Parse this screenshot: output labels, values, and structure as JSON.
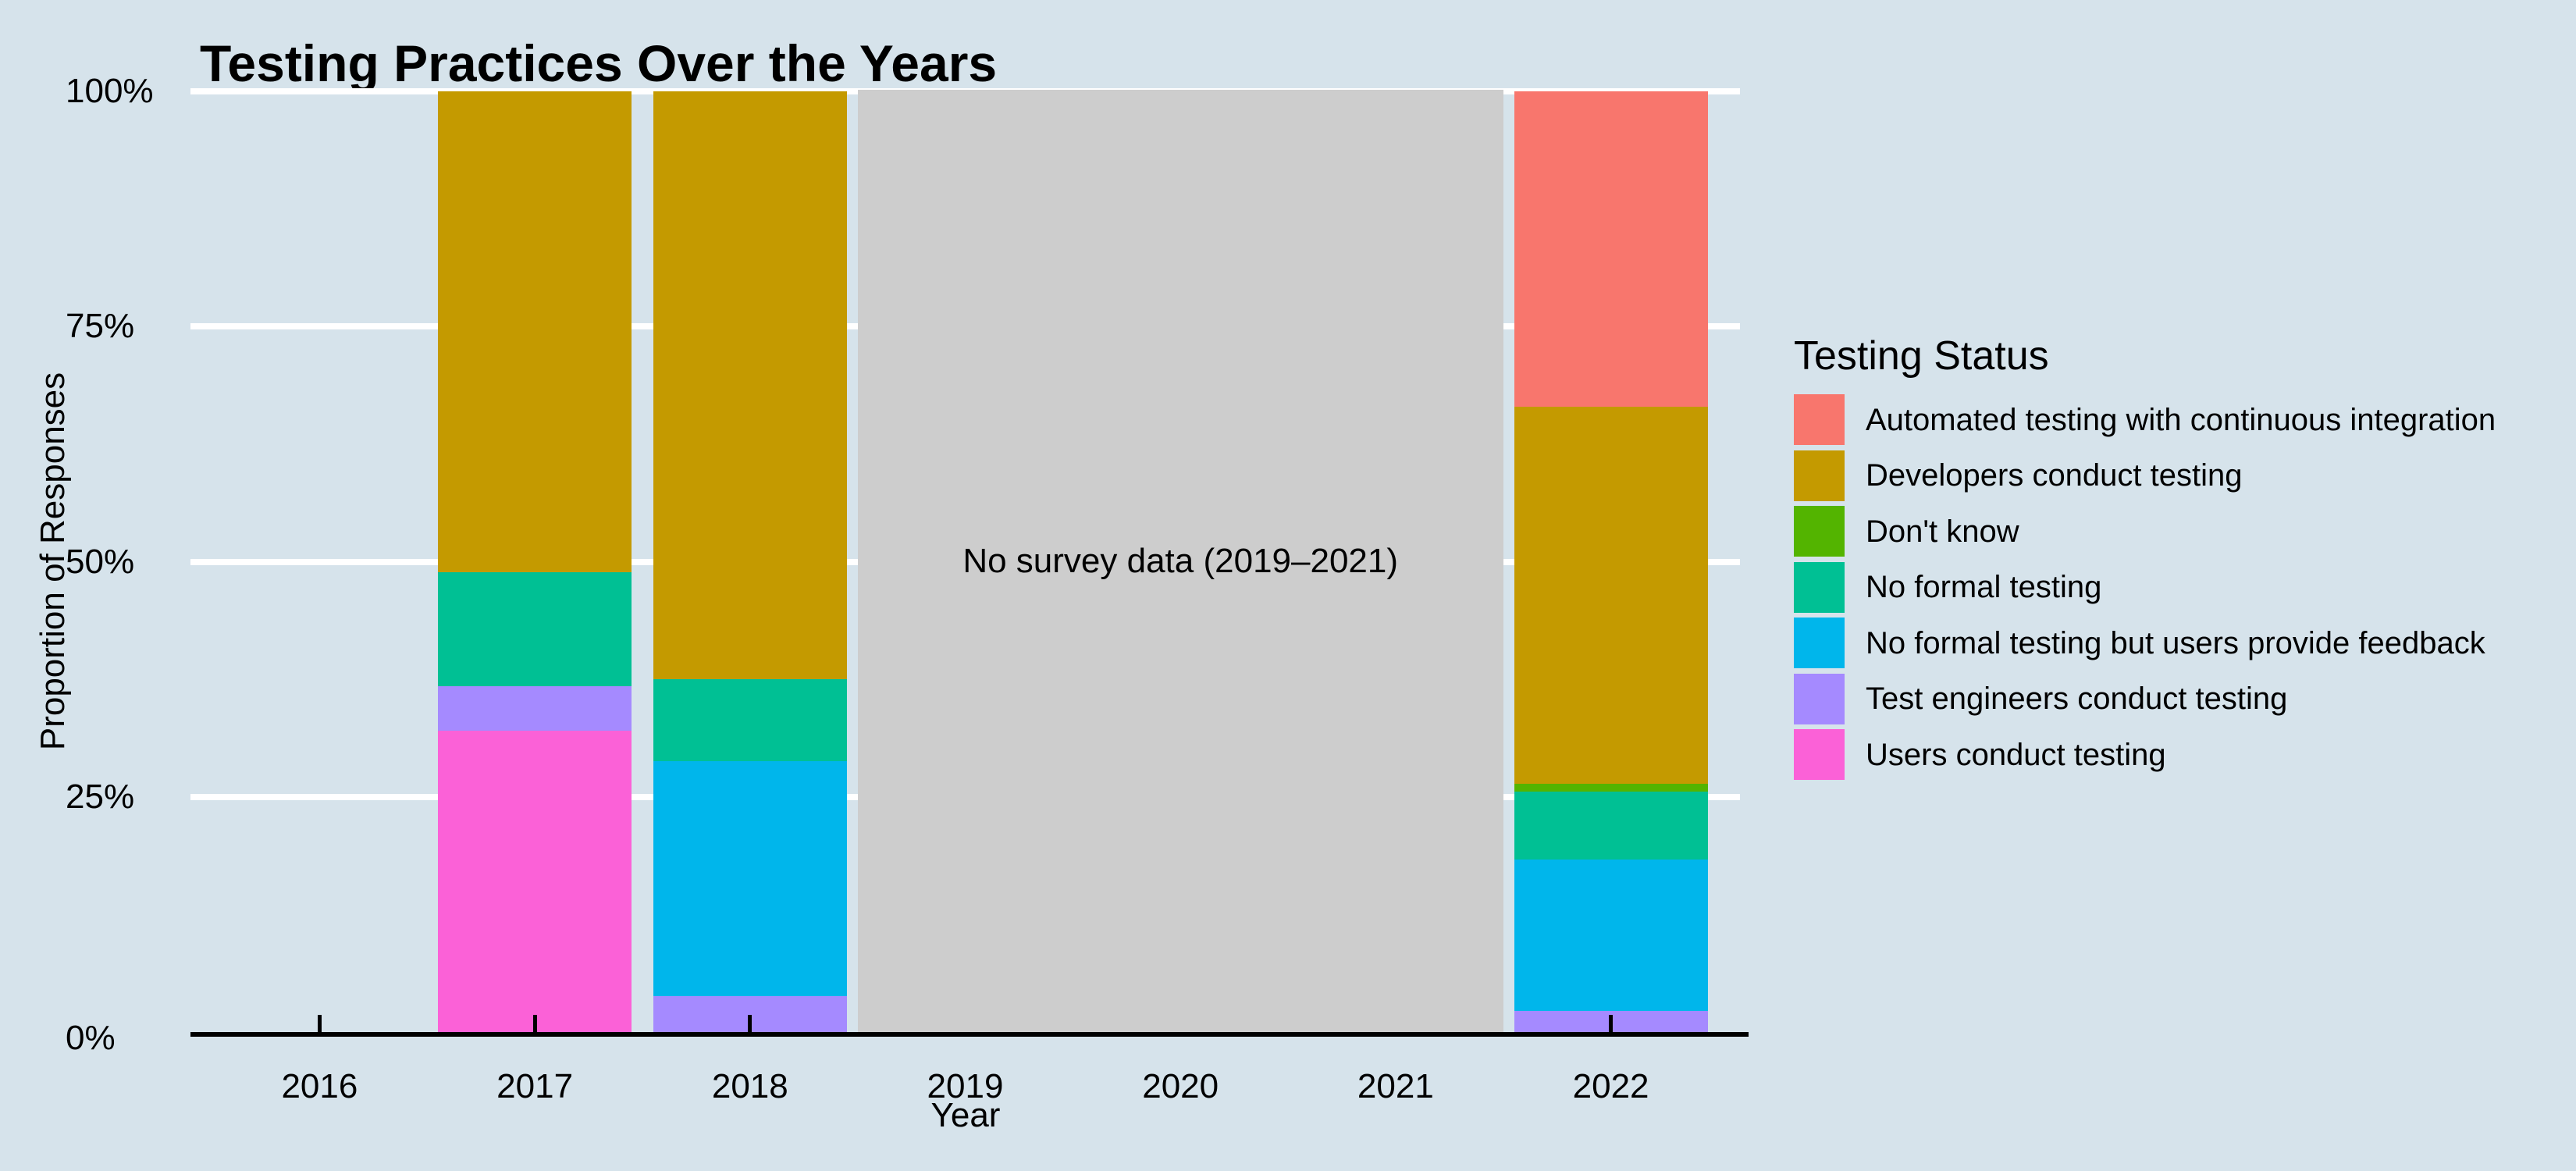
{
  "title": "Testing Practices Over the Years",
  "colors": {
    "background": "#d6e3eb",
    "gridline": "#ffffff",
    "axis_line": "#000000",
    "tick": "#000000",
    "text": "#000000",
    "no_data_box": "#cdcdcd"
  },
  "y_axis": {
    "title": "Proportion of Responses",
    "ticks": [
      {
        "value": 0,
        "label": "0%"
      },
      {
        "value": 25,
        "label": "25%"
      },
      {
        "value": 50,
        "label": "50%"
      },
      {
        "value": 75,
        "label": "75%"
      },
      {
        "value": 100,
        "label": "100%"
      }
    ]
  },
  "x_axis": {
    "title": "Year",
    "categories": [
      "2016",
      "2017",
      "2018",
      "2019",
      "2020",
      "2021",
      "2022"
    ]
  },
  "legend": {
    "title": "Testing Status"
  },
  "annotation": {
    "text": "No survey data (2019–2021)"
  },
  "chart_data": {
    "type": "bar",
    "subtype": "stacked-percent",
    "title": "Testing Practices Over the Years",
    "xlabel": "Year",
    "ylabel": "Proportion of Responses",
    "x": [
      "2016",
      "2017",
      "2018",
      "2019",
      "2020",
      "2021",
      "2022"
    ],
    "ylim": [
      0,
      100
    ],
    "y_tick_labels": [
      "0%",
      "25%",
      "50%",
      "75%",
      "100%"
    ],
    "grid": "horizontal white major gridlines",
    "legend_title": "Testing Status",
    "legend_position": "right",
    "stack_order": "legend order top-to-bottom (reverse alphabetical from bottom)",
    "no_data_years": [
      "2019",
      "2020",
      "2021"
    ],
    "no_data_label": "No survey data (2019–2021)",
    "series": [
      {
        "name": "Automated testing with continuous integration",
        "color": "#F8766D",
        "values": [
          0,
          0,
          0,
          null,
          null,
          null,
          33.5
        ]
      },
      {
        "name": "Developers conduct testing",
        "color": "#C49A00",
        "values": [
          0,
          51.1,
          62.5,
          null,
          null,
          null,
          40.1
        ]
      },
      {
        "name": "Don't know",
        "color": "#53B400",
        "values": [
          0,
          0,
          0,
          null,
          null,
          null,
          0.8
        ]
      },
      {
        "name": "No formal testing",
        "color": "#00C094",
        "values": [
          0,
          12.1,
          8.7,
          null,
          null,
          null,
          7.3
        ]
      },
      {
        "name": "No formal testing but users provide feedback",
        "color": "#00B6EB",
        "values": [
          0,
          0,
          25.0,
          null,
          null,
          null,
          16.1
        ]
      },
      {
        "name": "Test engineers conduct testing",
        "color": "#A58AFF",
        "values": [
          0,
          4.8,
          3.8,
          null,
          null,
          null,
          2.2
        ]
      },
      {
        "name": "Users conduct testing",
        "color": "#FB61D7",
        "values": [
          0,
          32.0,
          0,
          null,
          null,
          null,
          0
        ]
      }
    ]
  }
}
